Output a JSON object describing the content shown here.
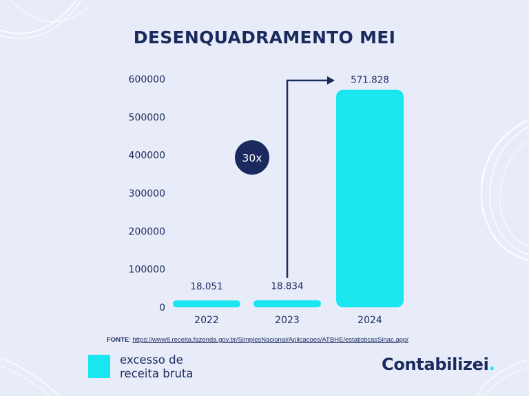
{
  "title": "DESENQUADRAMENTO MEI",
  "chart_data": {
    "type": "bar",
    "categories": [
      "2022",
      "2023",
      "2024"
    ],
    "values": [
      18051,
      18834,
      571828
    ],
    "data_labels": [
      "18.051",
      "18.834",
      "571.828"
    ],
    "yticks": [
      0,
      100000,
      200000,
      300000,
      400000,
      500000,
      600000
    ],
    "ylim": [
      0,
      600000
    ],
    "grid": false,
    "annotation": {
      "text": "30x",
      "from": "2023",
      "to": "2024"
    },
    "bar_color": "#19e6ee"
  },
  "source": {
    "label": "FONTE",
    "url": "https://www8.receita.fazenda.gov.br/SimplesNacional/Aplicacoes/ATBHE/estatisticasSinac.app/"
  },
  "legend": {
    "label": "excesso de receita bruta",
    "color": "#19e6ee"
  },
  "brand": {
    "name": "Contabilizei",
    "dot": "."
  },
  "colors": {
    "background": "#e7ecf8",
    "text": "#1b2a5e",
    "accent": "#19e6ee"
  }
}
